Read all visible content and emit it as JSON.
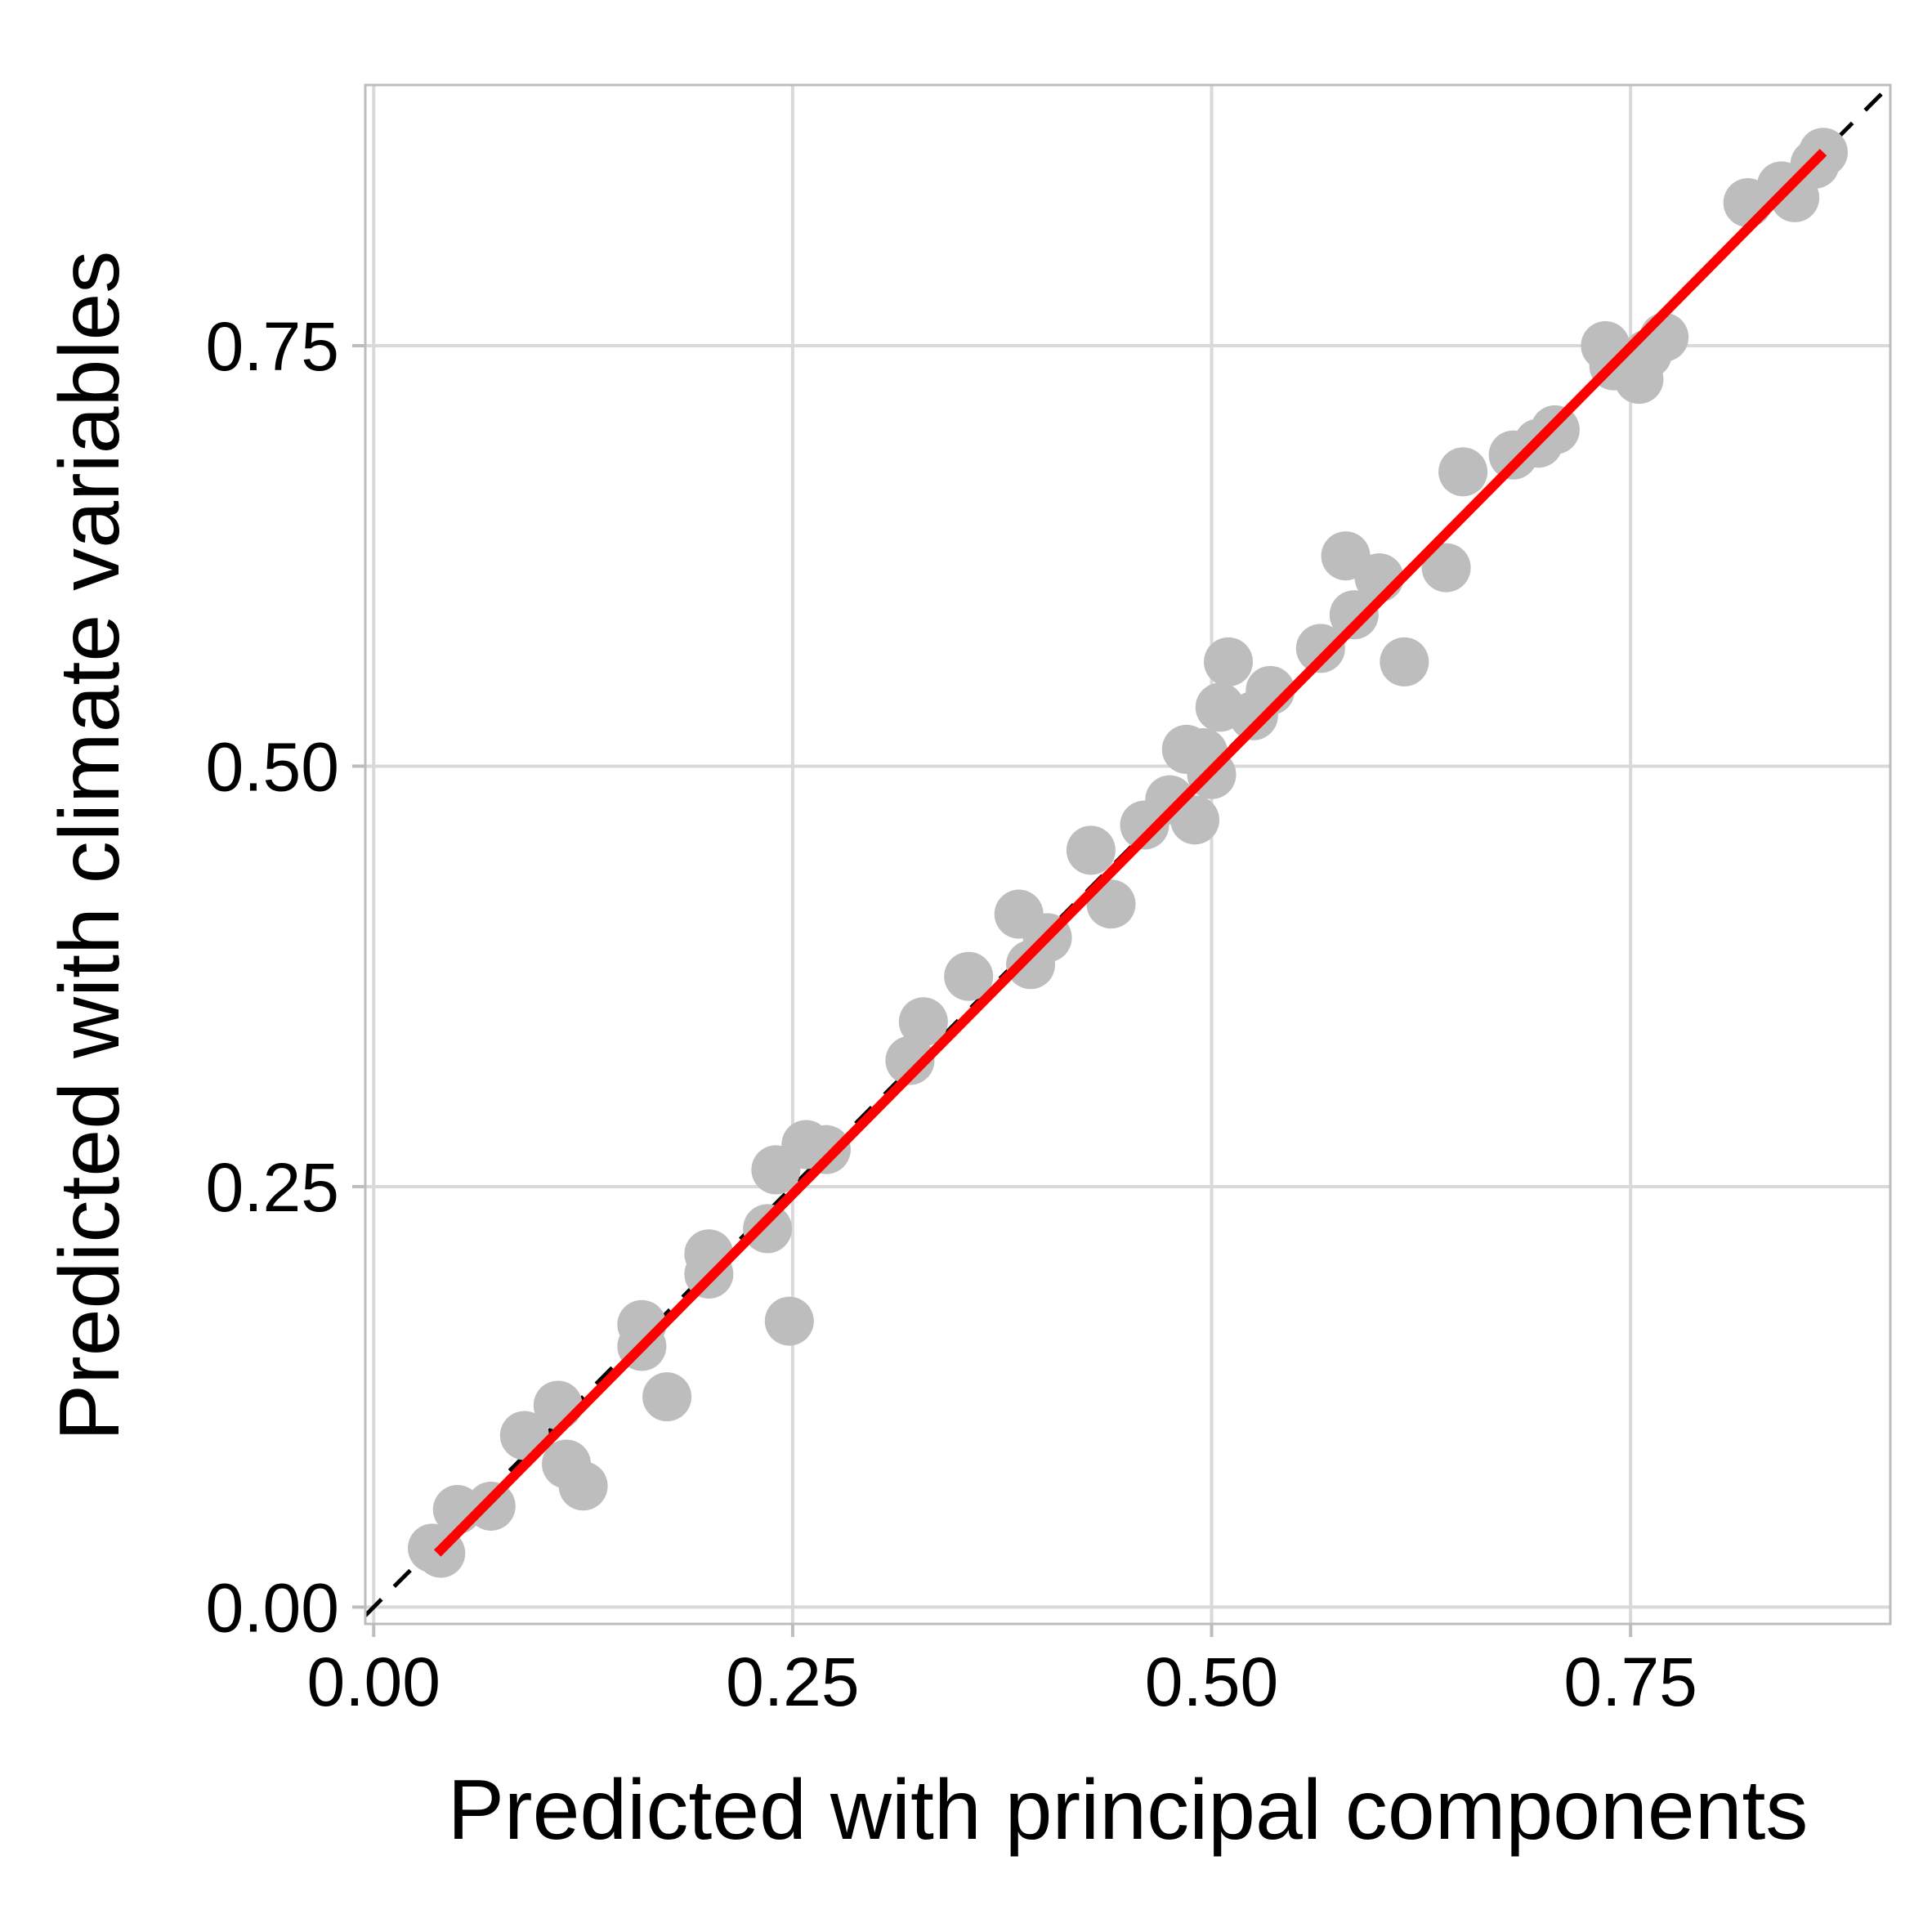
{
  "chart_data": {
    "type": "scatter",
    "xlabel": "Predicted with principal components",
    "ylabel": "Predicted with climate variables",
    "xlim": [
      -0.005,
      0.905
    ],
    "ylim": [
      -0.01,
      0.905
    ],
    "x_ticks": [
      {
        "value": 0.0,
        "label": "0.00"
      },
      {
        "value": 0.25,
        "label": "0.25"
      },
      {
        "value": 0.5,
        "label": "0.50"
      },
      {
        "value": 0.75,
        "label": "0.75"
      }
    ],
    "y_ticks": [
      {
        "value": 0.0,
        "label": "0.00"
      },
      {
        "value": 0.25,
        "label": "0.25"
      },
      {
        "value": 0.5,
        "label": "0.50"
      },
      {
        "value": 0.75,
        "label": "0.75"
      }
    ],
    "grid": true,
    "colors": {
      "points": "#bdbdbd",
      "fit_line": "#ff0000",
      "identity_line": "#000000",
      "grid": "#d9d9d9",
      "panel_border": "#bdbdbd"
    },
    "points": [
      [
        0.035,
        0.035
      ],
      [
        0.04,
        0.032
      ],
      [
        0.05,
        0.058
      ],
      [
        0.07,
        0.06
      ],
      [
        0.09,
        0.102
      ],
      [
        0.11,
        0.12
      ],
      [
        0.115,
        0.085
      ],
      [
        0.125,
        0.072
      ],
      [
        0.16,
        0.168
      ],
      [
        0.16,
        0.155
      ],
      [
        0.175,
        0.125
      ],
      [
        0.2,
        0.198
      ],
      [
        0.2,
        0.21
      ],
      [
        0.235,
        0.225
      ],
      [
        0.24,
        0.26
      ],
      [
        0.248,
        0.17
      ],
      [
        0.258,
        0.275
      ],
      [
        0.27,
        0.272
      ],
      [
        0.32,
        0.325
      ],
      [
        0.328,
        0.348
      ],
      [
        0.355,
        0.375
      ],
      [
        0.385,
        0.412
      ],
      [
        0.392,
        0.382
      ],
      [
        0.402,
        0.398
      ],
      [
        0.428,
        0.45
      ],
      [
        0.44,
        0.418
      ],
      [
        0.46,
        0.465
      ],
      [
        0.475,
        0.48
      ],
      [
        0.485,
        0.51
      ],
      [
        0.49,
        0.468
      ],
      [
        0.495,
        0.508
      ],
      [
        0.5,
        0.495
      ],
      [
        0.505,
        0.535
      ],
      [
        0.51,
        0.562
      ],
      [
        0.525,
        0.53
      ],
      [
        0.535,
        0.545
      ],
      [
        0.565,
        0.57
      ],
      [
        0.58,
        0.625
      ],
      [
        0.585,
        0.59
      ],
      [
        0.6,
        0.612
      ],
      [
        0.615,
        0.562
      ],
      [
        0.64,
        0.618
      ],
      [
        0.65,
        0.675
      ],
      [
        0.68,
        0.685
      ],
      [
        0.695,
        0.692
      ],
      [
        0.705,
        0.7
      ],
      [
        0.735,
        0.75
      ],
      [
        0.74,
        0.738
      ],
      [
        0.755,
        0.73
      ],
      [
        0.76,
        0.745
      ],
      [
        0.77,
        0.755
      ],
      [
        0.82,
        0.835
      ],
      [
        0.84,
        0.845
      ],
      [
        0.848,
        0.838
      ],
      [
        0.86,
        0.858
      ],
      [
        0.865,
        0.865
      ]
    ],
    "fit_line": [
      [
        0.038,
        0.032
      ],
      [
        0.865,
        0.865
      ]
    ],
    "identity_line": [
      [
        -0.005,
        -0.005
      ],
      [
        0.905,
        0.905
      ]
    ]
  }
}
